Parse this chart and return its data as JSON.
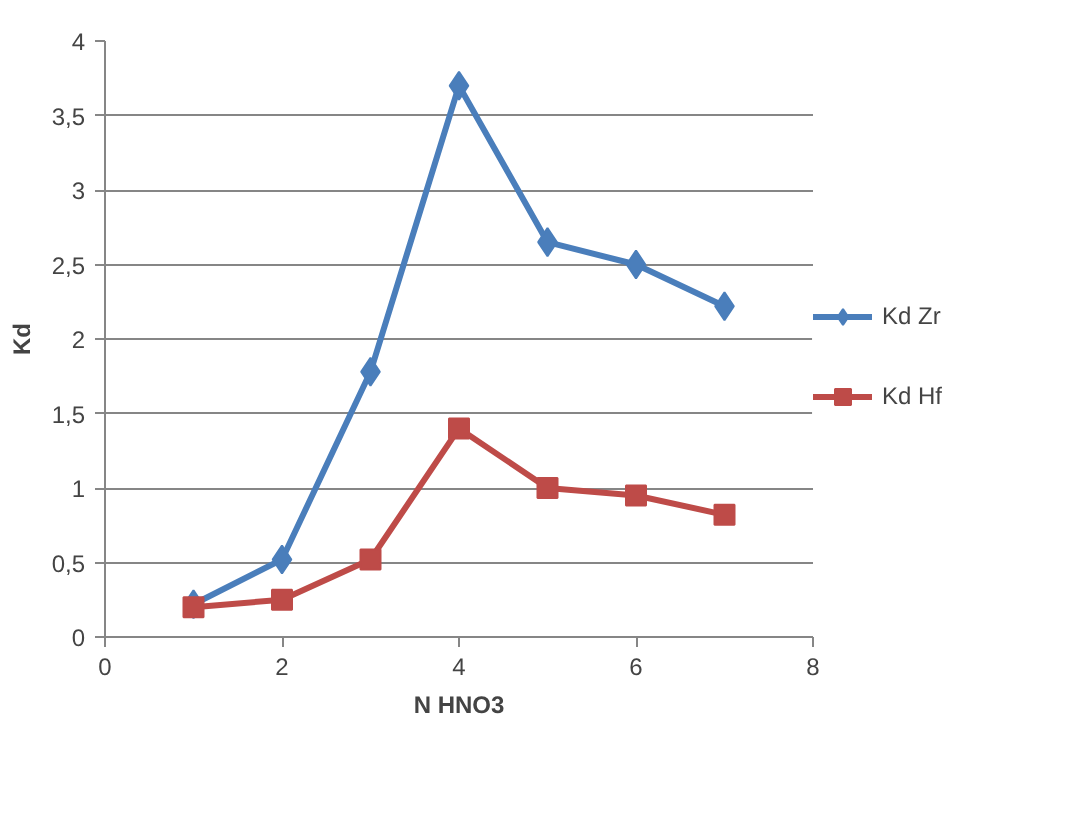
{
  "chart_data": {
    "type": "line",
    "xlabel": "N HNO3",
    "ylabel": "Kd",
    "x": [
      1,
      2,
      3,
      4,
      5,
      6,
      7
    ],
    "series": [
      {
        "name": "Kd Zr",
        "color": "#4a7ebb",
        "marker": "diamond",
        "values": [
          0.22,
          0.52,
          1.78,
          3.7,
          2.65,
          2.5,
          2.22
        ]
      },
      {
        "name": "Kd Hf",
        "color": "#be4b48",
        "marker": "square",
        "values": [
          0.2,
          0.25,
          0.52,
          1.4,
          1.0,
          0.95,
          0.82
        ]
      }
    ],
    "xlim": [
      0,
      8
    ],
    "xticks": [
      0,
      2,
      4,
      6,
      8
    ],
    "ylim": [
      0,
      4
    ],
    "yticks": [
      0,
      {
        "value": 0.5,
        "label": "0,5"
      },
      1,
      {
        "value": 1.5,
        "label": "1,5"
      },
      2,
      {
        "value": 2.5,
        "label": "2,5"
      },
      3,
      {
        "value": 3.5,
        "label": "3,5"
      },
      4
    ],
    "grid": "y",
    "legend": "right",
    "line_style": "solid"
  }
}
